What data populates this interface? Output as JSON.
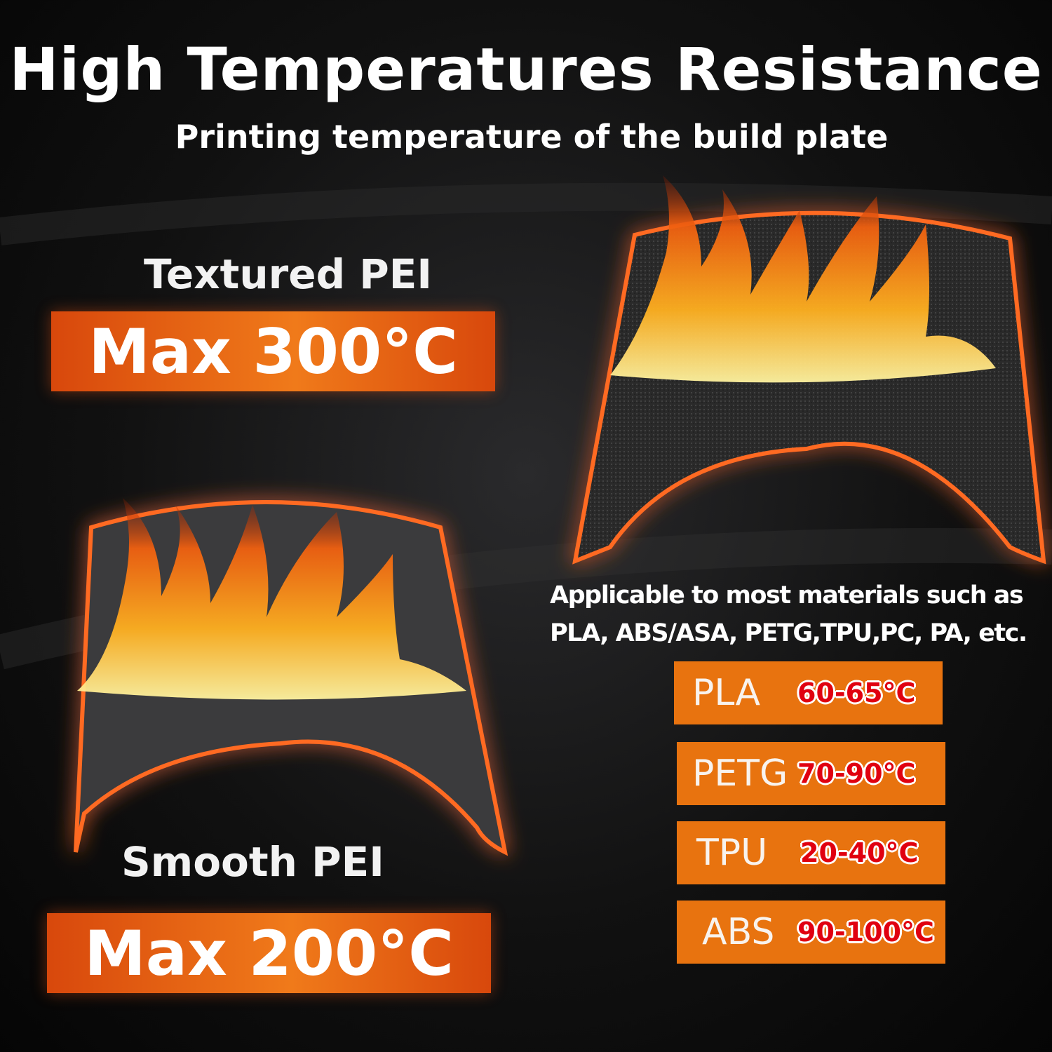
{
  "header": {
    "title": "High Temperatures Resistance",
    "subtitle": "Printing temperature of  the build plate"
  },
  "plates": [
    {
      "name": "Textured PEI",
      "max": "Max 300°C"
    },
    {
      "name": "Smooth PEI",
      "max": "Max 200°C"
    }
  ],
  "applicable": {
    "line1": "Applicable to most materials such as",
    "line2": "PLA, ABS/ASA, PETG,TPU,PC, PA, etc."
  },
  "materials": [
    {
      "name": "PLA",
      "temp": "60-65°C"
    },
    {
      "name": "PETG",
      "temp": "70-90°C"
    },
    {
      "name": "TPU",
      "temp": "20-40°C"
    },
    {
      "name": "ABS",
      "temp": "90-100°C"
    }
  ],
  "colors": {
    "accent": "#e8730f",
    "temp_text": "#e00010",
    "banner": "#e0520f",
    "background": "#111111"
  }
}
